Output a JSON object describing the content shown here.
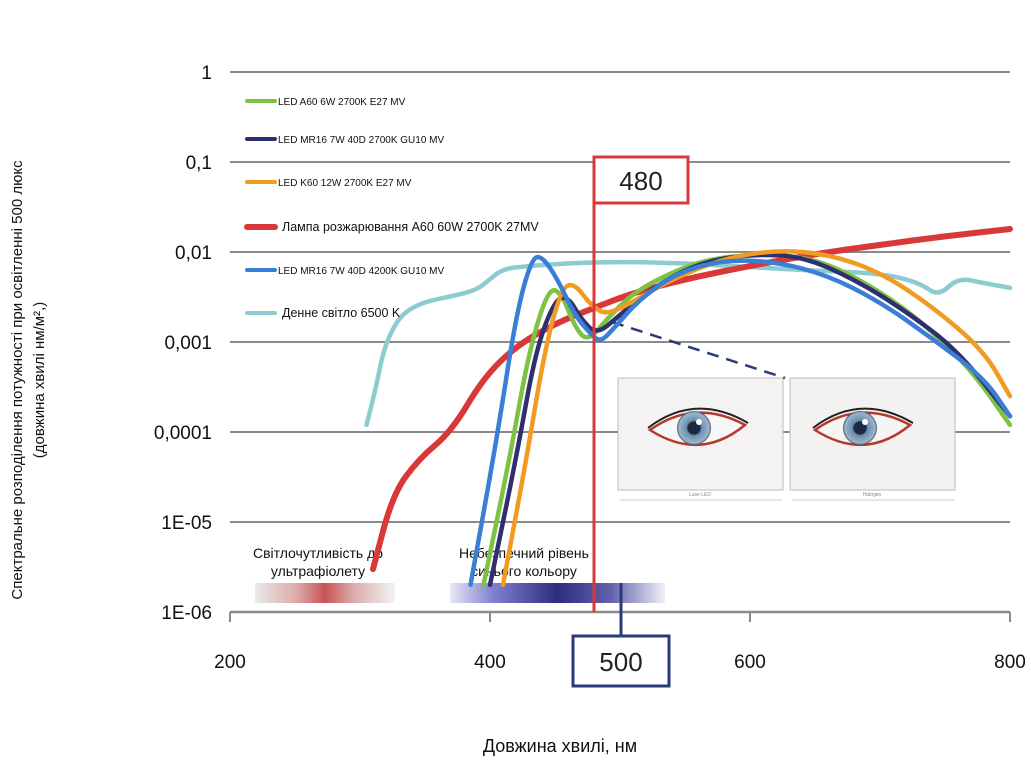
{
  "chart_data": {
    "type": "line",
    "xlabel": "Довжина хвилі, нм",
    "ylabel_line1": "Спектральне розподілення потужності при освітленні 500 люкс",
    "ylabel_line2": "(довжина хвилі нм/м²,)",
    "x_ticks": [
      "200",
      "400",
      "600",
      "800"
    ],
    "y_ticks": [
      "1",
      "0,1",
      "0,01",
      "0,001",
      "0,0001",
      "1E-05",
      "1E-06"
    ],
    "xlim": [
      200,
      800
    ],
    "ylim": [
      1e-06,
      1
    ],
    "y_scale": "log",
    "grid": true,
    "legend_position": "top-left",
    "series": [
      {
        "name": "LED A60 6W 2700K E27 MV",
        "color": "#7dc242",
        "points": [
          [
            395,
            2e-06
          ],
          [
            415,
            5e-05
          ],
          [
            430,
            0.0008
          ],
          [
            445,
            0.004
          ],
          [
            455,
            0.0035
          ],
          [
            465,
            0.0015
          ],
          [
            475,
            0.001
          ],
          [
            490,
            0.0018
          ],
          [
            510,
            0.0035
          ],
          [
            540,
            0.006
          ],
          [
            570,
            0.0085
          ],
          [
            610,
            0.0095
          ],
          [
            650,
            0.0085
          ],
          [
            690,
            0.0045
          ],
          [
            730,
            0.0018
          ],
          [
            770,
            0.0005
          ],
          [
            800,
            0.00012
          ]
        ]
      },
      {
        "name": "LED MR16 7W 40D 2700K GU10 MV",
        "color": "#2e2f6e",
        "points": [
          [
            400,
            2e-06
          ],
          [
            420,
            5e-05
          ],
          [
            435,
            0.0008
          ],
          [
            450,
            0.003
          ],
          [
            460,
            0.0032
          ],
          [
            470,
            0.0018
          ],
          [
            482,
            0.0012
          ],
          [
            500,
            0.002
          ],
          [
            525,
            0.004
          ],
          [
            560,
            0.0075
          ],
          [
            600,
            0.0095
          ],
          [
            640,
            0.009
          ],
          [
            680,
            0.005
          ],
          [
            720,
            0.0022
          ],
          [
            760,
            0.0008
          ],
          [
            800,
            0.00015
          ]
        ]
      },
      {
        "name": "LED K60 12W 2700K E27 MV",
        "color": "#f29b22",
        "points": [
          [
            410,
            2e-06
          ],
          [
            428,
            5e-05
          ],
          [
            442,
            0.0008
          ],
          [
            455,
            0.004
          ],
          [
            465,
            0.0045
          ],
          [
            478,
            0.0025
          ],
          [
            490,
            0.002
          ],
          [
            510,
            0.0028
          ],
          [
            540,
            0.005
          ],
          [
            580,
            0.0085
          ],
          [
            620,
            0.0105
          ],
          [
            660,
            0.0095
          ],
          [
            700,
            0.006
          ],
          [
            740,
            0.0025
          ],
          [
            780,
            0.0008
          ],
          [
            800,
            0.00025
          ]
        ]
      },
      {
        "name": "Лампа розжарювання A60 60W 2700K 27MV",
        "color": "#d93838",
        "points": [
          [
            310,
            3e-06
          ],
          [
            325,
            2e-05
          ],
          [
            345,
            5e-05
          ],
          [
            370,
            0.0001
          ],
          [
            395,
            0.0004
          ],
          [
            420,
            0.0009
          ],
          [
            450,
            0.0016
          ],
          [
            480,
            0.0024
          ],
          [
            510,
            0.0035
          ],
          [
            550,
            0.005
          ],
          [
            600,
            0.007
          ],
          [
            650,
            0.0095
          ],
          [
            700,
            0.012
          ],
          [
            750,
            0.015
          ],
          [
            800,
            0.018
          ]
        ]
      },
      {
        "name": "LED MR16 7W 40D 4200K GU10 MV",
        "color": "#3a7fd5",
        "points": [
          [
            385,
            2e-06
          ],
          [
            405,
            8e-05
          ],
          [
            420,
            0.002
          ],
          [
            432,
            0.0085
          ],
          [
            440,
            0.009
          ],
          [
            452,
            0.005
          ],
          [
            465,
            0.002
          ],
          [
            478,
            0.0012
          ],
          [
            485,
            0.001
          ],
          [
            495,
            0.0014
          ],
          [
            515,
            0.003
          ],
          [
            545,
            0.006
          ],
          [
            580,
            0.0082
          ],
          [
            620,
            0.0078
          ],
          [
            660,
            0.0055
          ],
          [
            700,
            0.0028
          ],
          [
            740,
            0.0011
          ],
          [
            780,
            0.0004
          ],
          [
            800,
            0.00015
          ]
        ]
      },
      {
        "name": "Денне світло 6500 K",
        "color": "#8ccbd0",
        "points": [
          [
            305,
            0.00012
          ],
          [
            312,
            0.0003
          ],
          [
            318,
            0.0008
          ],
          [
            326,
            0.0015
          ],
          [
            335,
            0.0022
          ],
          [
            350,
            0.0028
          ],
          [
            370,
            0.0032
          ],
          [
            390,
            0.0038
          ],
          [
            400,
            0.005
          ],
          [
            410,
            0.0065
          ],
          [
            430,
            0.007
          ],
          [
            460,
            0.0075
          ],
          [
            500,
            0.0078
          ],
          [
            550,
            0.0075
          ],
          [
            600,
            0.0068
          ],
          [
            650,
            0.0062
          ],
          [
            700,
            0.0058
          ],
          [
            730,
            0.0046
          ],
          [
            745,
            0.0032
          ],
          [
            760,
            0.0052
          ],
          [
            780,
            0.0045
          ],
          [
            800,
            0.004
          ]
        ]
      }
    ],
    "annotations": [
      {
        "label": "480",
        "x": 480
      },
      {
        "label": "500",
        "x": 500
      },
      {
        "label": "Світлочутливість до ультрафіолету"
      },
      {
        "label": "Небезпечний рівень синього кольору"
      }
    ]
  },
  "callouts": {
    "red_box": "480",
    "blue_box": "500"
  },
  "bands": {
    "uv_label_line1": "Світлочутливість до",
    "uv_label_line2": "ультрафіолету",
    "blue_label_line1": "Небезпечний рівень",
    "blue_label_line2": "синього кольору"
  },
  "photos": {
    "left_caption": "Luxe LED",
    "right_caption": "Halogen"
  },
  "colors": {
    "grid": "#8a8a8a",
    "red_marker": "#d93838",
    "blue_marker": "#2a3a7a",
    "dashed_connector": "#2a3a7a"
  }
}
